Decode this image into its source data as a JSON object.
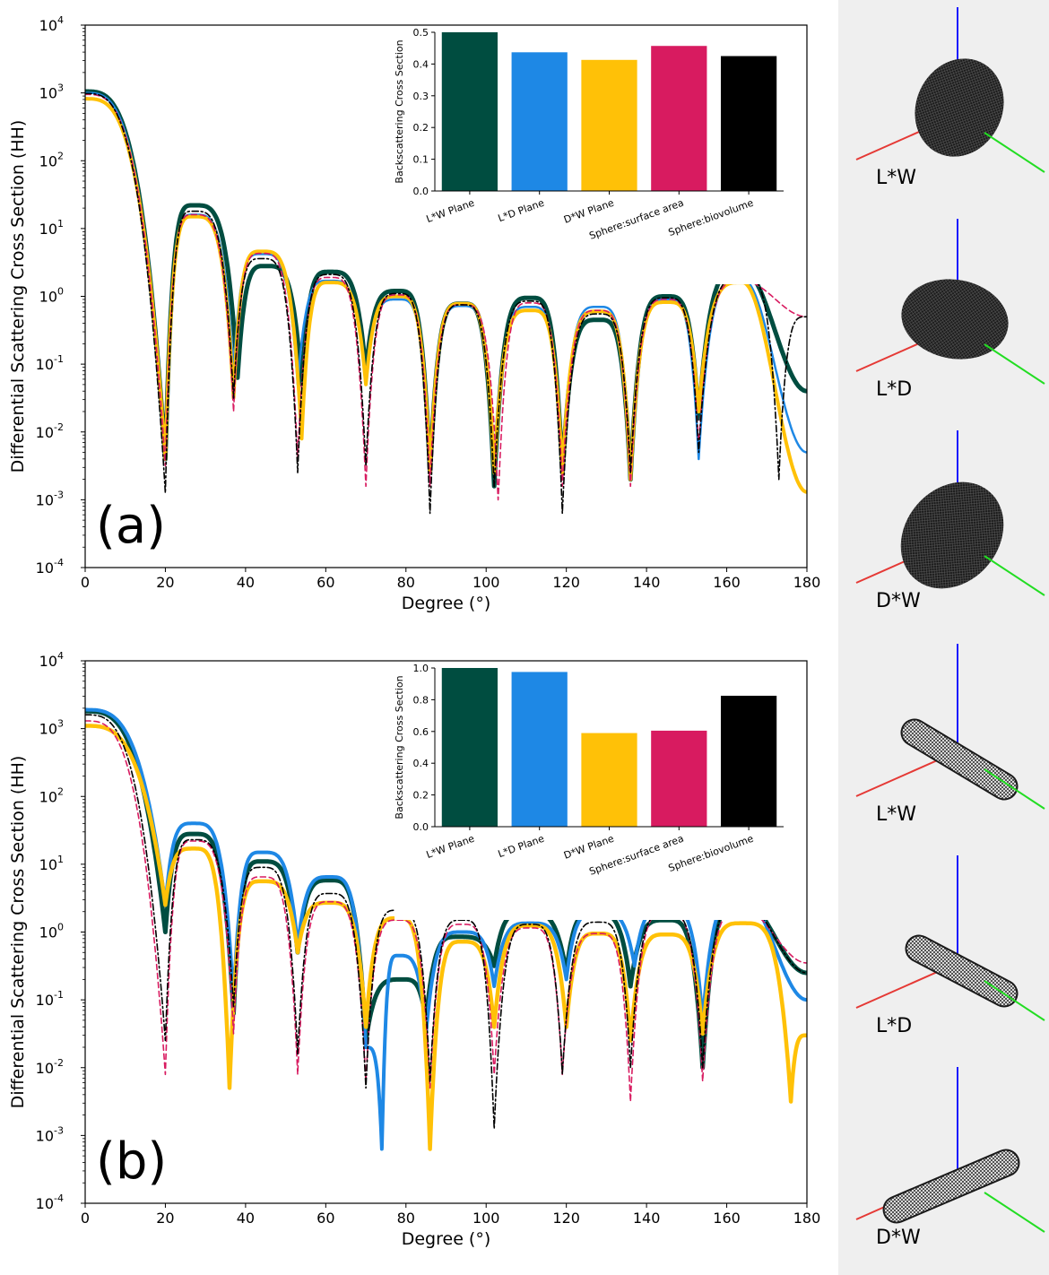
{
  "chart_data": [
    {
      "type": "line",
      "panel_label": "(a)",
      "xlabel": "Degree (°)",
      "ylabel": "Differential Scattering Cross Section (HH)",
      "xlim": [
        0,
        180
      ],
      "ylim_log10": [
        -4,
        4
      ],
      "x_ticks": [
        "0",
        "20",
        "40",
        "60",
        "80",
        "100",
        "120",
        "140",
        "160",
        "180"
      ],
      "y_ticks": [
        "10",
        "10",
        "10",
        "10",
        "10",
        "10",
        "10",
        "10",
        "10"
      ],
      "y_tick_exponents": [
        "4",
        "3",
        "2",
        "1",
        "0",
        "-1",
        "-2",
        "-3",
        "-4"
      ],
      "series": [
        {
          "name": "L*W Plane",
          "color": "#004d40",
          "dash": "solid",
          "width": 5,
          "start": 1050,
          "nulls": [
            [
              20,
              -2.4
            ],
            [
              38,
              -1.2
            ],
            [
              54,
              -1.3
            ],
            [
              70,
              -1.1
            ],
            [
              86,
              -2.6
            ],
            [
              102,
              -2.8
            ],
            [
              119,
              -2.6
            ],
            [
              136,
              -2.7
            ],
            [
              153,
              -1.8
            ]
          ],
          "peaks": [
            [
              27,
              22
            ],
            [
              45,
              2.8
            ],
            [
              61,
              2.3
            ],
            [
              78,
              1.2
            ],
            [
              94,
              0.78
            ],
            [
              111,
              0.95
            ],
            [
              128,
              0.45
            ],
            [
              145,
              1.0
            ],
            [
              164,
              2.5
            ]
          ],
          "end": [
            180,
            0.04
          ]
        },
        {
          "name": "L*D Plane",
          "color": "#1e88e5",
          "dash": "solid",
          "width": 2.5,
          "start": 1000,
          "nulls": [
            [
              20,
              -2.4
            ],
            [
              37,
              -1.1
            ],
            [
              53,
              -1.3
            ],
            [
              70,
              -1.3
            ],
            [
              86,
              -2.6
            ],
            [
              102,
              -2.6
            ],
            [
              119,
              -2.6
            ],
            [
              136,
              -2.6
            ],
            [
              153,
              -2.4
            ]
          ],
          "peaks": [
            [
              27,
              16
            ],
            [
              44,
              4.2
            ],
            [
              61,
              1.7
            ],
            [
              78,
              0.9
            ],
            [
              94,
              0.72
            ],
            [
              111,
              0.7
            ],
            [
              128,
              0.7
            ],
            [
              145,
              0.9
            ],
            [
              164,
              1.8
            ]
          ],
          "end": [
            180,
            0.005
          ]
        },
        {
          "name": "D*W Plane",
          "color": "#ffc107",
          "dash": "solid",
          "width": 4,
          "start": 820,
          "nulls": [
            [
              20,
              -2.4
            ],
            [
              37,
              -1.5
            ],
            [
              54,
              -2.1
            ],
            [
              70,
              -1.3
            ],
            [
              86,
              -2.6
            ],
            [
              102,
              -2.6
            ],
            [
              119,
              -2.6
            ],
            [
              136,
              -2.7
            ],
            [
              153,
              -1.7
            ]
          ],
          "peaks": [
            [
              27,
              15
            ],
            [
              44,
              4.6
            ],
            [
              61,
              1.6
            ],
            [
              78,
              1.0
            ],
            [
              94,
              0.78
            ],
            [
              111,
              0.62
            ],
            [
              128,
              0.6
            ],
            [
              145,
              0.82
            ],
            [
              164,
              1.6
            ]
          ],
          "end": [
            180,
            0.0013
          ]
        },
        {
          "name": "Sphere:surface area",
          "color": "#d81b60",
          "dash": "6,4",
          "width": 1.6,
          "start": 950,
          "nulls": [
            [
              20,
              -2.5
            ],
            [
              37,
              -1.7
            ],
            [
              53,
              -2.4
            ],
            [
              70,
              -2.8
            ],
            [
              86,
              -2.8
            ],
            [
              103,
              -3.0
            ],
            [
              119,
              -2.8
            ],
            [
              136,
              -2.8
            ],
            [
              153,
              -2.2
            ]
          ],
          "peaks": [
            [
              27,
              16
            ],
            [
              44,
              4.3
            ],
            [
              61,
              1.9
            ],
            [
              78,
              1.05
            ],
            [
              94,
              0.75
            ],
            [
              111,
              0.8
            ],
            [
              128,
              0.62
            ],
            [
              145,
              0.9
            ],
            [
              164,
              1.7
            ]
          ],
          "end": [
            180,
            0.5
          ]
        },
        {
          "name": "Sphere:biovolume",
          "color": "#000000",
          "dash": "7,3,2,3",
          "width": 1.6,
          "start": 980,
          "nulls": [
            [
              20,
              -2.9
            ],
            [
              37,
              -1.5
            ],
            [
              53,
              -2.6
            ],
            [
              70,
              -2.5
            ],
            [
              86,
              -3.2
            ],
            [
              102,
              -2.8
            ],
            [
              119,
              -3.2
            ],
            [
              136,
              -2.6
            ],
            [
              153,
              -2.3
            ],
            [
              173,
              -2.7
            ]
          ],
          "peaks": [
            [
              27,
              18
            ],
            [
              44,
              3.6
            ],
            [
              61,
              2.1
            ],
            [
              78,
              1.1
            ],
            [
              94,
              0.75
            ],
            [
              111,
              0.85
            ],
            [
              128,
              0.55
            ],
            [
              145,
              0.95
            ],
            [
              164,
              1.9
            ]
          ],
          "end": [
            180,
            0.5
          ]
        }
      ],
      "inset": {
        "type": "bar",
        "ylabel": "Backscattering Cross Section",
        "ylim": [
          0,
          0.5
        ],
        "y_ticks": [
          "0.0",
          "0.1",
          "0.2",
          "0.3",
          "0.4",
          "0.5"
        ],
        "categories": [
          "L*W Plane",
          "L*D Plane",
          "D*W Plane",
          "Sphere:surface area",
          "Sphere:biovolume"
        ],
        "values": [
          0.5,
          0.437,
          0.413,
          0.457,
          0.425
        ],
        "colors": [
          "#004d40",
          "#1e88e5",
          "#ffc107",
          "#d81b60",
          "#000000"
        ]
      }
    },
    {
      "type": "line",
      "panel_label": "(b)",
      "xlabel": "Degree (°)",
      "ylabel": "Differential Scattering Cross Section (HH)",
      "xlim": [
        0,
        180
      ],
      "ylim_log10": [
        -4,
        4
      ],
      "x_ticks": [
        "0",
        "20",
        "40",
        "60",
        "80",
        "100",
        "120",
        "140",
        "160",
        "180"
      ],
      "y_ticks": [
        "10",
        "10",
        "10",
        "10",
        "10",
        "10",
        "10",
        "10",
        "10"
      ],
      "y_tick_exponents": [
        "4",
        "3",
        "2",
        "1",
        "0",
        "-1",
        "-2",
        "-3",
        "-4"
      ],
      "series": [
        {
          "name": "L*W Plane",
          "color": "#004d40",
          "dash": "solid",
          "width": 5,
          "start": 1800,
          "nulls": [
            [
              20,
              0.0
            ],
            [
              37,
              -1.2
            ],
            [
              53,
              -0.3
            ],
            [
              70,
              -1.6
            ],
            [
              85,
              -1.3
            ],
            [
              102,
              -0.5
            ],
            [
              120,
              -0.6
            ],
            [
              136,
              -0.8
            ],
            [
              154,
              -2.0
            ]
          ],
          "peaks": [
            [
              27,
              28
            ],
            [
              44,
              11
            ],
            [
              61,
              5.8
            ],
            [
              79,
              0.2
            ],
            [
              93,
              0.85
            ],
            [
              110,
              1.95
            ],
            [
              127,
              1.9
            ],
            [
              145,
              1.5
            ],
            [
              164,
              2.9
            ]
          ],
          "end": [
            180,
            0.25
          ]
        },
        {
          "name": "L*D Plane",
          "color": "#1e88e5",
          "dash": "solid",
          "width": 4,
          "start": 1900,
          "nulls": [
            [
              20,
              0.4
            ],
            [
              37,
              -1.0
            ],
            [
              53,
              -0.2
            ],
            [
              70,
              -1.7
            ],
            [
              74,
              -3.2
            ],
            [
              85,
              -1.5
            ],
            [
              102,
              -0.8
            ],
            [
              120,
              -0.7
            ],
            [
              137,
              -0.5
            ],
            [
              154,
              -1.3
            ]
          ],
          "peaks": [
            [
              27,
              40
            ],
            [
              44,
              15
            ],
            [
              61,
              6.5
            ],
            [
              78,
              0.45
            ],
            [
              94,
              1.0
            ],
            [
              111,
              1.35
            ],
            [
              128,
              1.95
            ],
            [
              145,
              2.3
            ],
            [
              164,
              3.5
            ]
          ],
          "end": [
            180,
            0.1
          ]
        },
        {
          "name": "D*W Plane",
          "color": "#ffc107",
          "dash": "solid",
          "width": 4.5,
          "start": 1100,
          "nulls": [
            [
              20,
              0.4
            ],
            [
              36,
              -2.3
            ],
            [
              53,
              -0.3
            ],
            [
              70,
              -1.4
            ],
            [
              86,
              -3.2
            ],
            [
              102,
              -1.4
            ],
            [
              120,
              -1.4
            ],
            [
              136,
              -1.6
            ],
            [
              154,
              -1.5
            ],
            [
              176,
              -2.5
            ]
          ],
          "peaks": [
            [
              27,
              17
            ],
            [
              44,
              5.6
            ],
            [
              61,
              2.7
            ],
            [
              78,
              1.6
            ],
            [
              94,
              0.72
            ],
            [
              111,
              1.25
            ],
            [
              128,
              0.95
            ],
            [
              145,
              0.92
            ],
            [
              164,
              1.35
            ]
          ],
          "end": [
            180,
            0.03
          ]
        },
        {
          "name": "Sphere:surface area",
          "color": "#d81b60",
          "dash": "6,4",
          "width": 1.6,
          "start": 1300,
          "nulls": [
            [
              20,
              -2.1
            ],
            [
              37,
              -1.5
            ],
            [
              53,
              -2.1
            ],
            [
              70,
              -2.2
            ],
            [
              86,
              -2.3
            ],
            [
              102,
              -2.1
            ],
            [
              119,
              -2.1
            ],
            [
              136,
              -2.5
            ],
            [
              154,
              -2.2
            ]
          ],
          "peaks": [
            [
              27,
              22
            ],
            [
              44,
              6.5
            ],
            [
              61,
              2.8
            ],
            [
              78,
              1.5
            ],
            [
              94,
              1.3
            ],
            [
              111,
              1.15
            ],
            [
              128,
              0.95
            ],
            [
              145,
              1.9
            ],
            [
              164,
              2.2
            ]
          ],
          "end": [
            180,
            0.35
          ]
        },
        {
          "name": "Sphere:biovolume",
          "color": "#000000",
          "dash": "7,3,2,3",
          "width": 1.6,
          "start": 1600,
          "nulls": [
            [
              20,
              -1.6
            ],
            [
              37,
              -1.1
            ],
            [
              53,
              -1.8
            ],
            [
              70,
              -2.3
            ],
            [
              86,
              -2.2
            ],
            [
              102,
              -2.9
            ],
            [
              119,
              -2.1
            ],
            [
              136,
              -2.0
            ],
            [
              154,
              -2.0
            ]
          ],
          "peaks": [
            [
              27,
              23
            ],
            [
              44,
              9
            ],
            [
              61,
              3.7
            ],
            [
              78,
              2.1
            ],
            [
              94,
              1.5
            ],
            [
              111,
              1.3
            ],
            [
              128,
              1.4
            ],
            [
              145,
              1.9
            ],
            [
              164,
              2.8
            ]
          ],
          "end": [
            180,
            0.25
          ]
        }
      ],
      "inset": {
        "type": "bar",
        "ylabel": "Backscattering Cross Section",
        "ylim": [
          0,
          1.0
        ],
        "y_ticks": [
          "0.0",
          "0.2",
          "0.4",
          "0.6",
          "0.8",
          "1.0"
        ],
        "categories": [
          "L*W Plane",
          "L*D Plane",
          "D*W Plane",
          "Sphere:surface area",
          "Sphere:biovolume"
        ],
        "values": [
          1.0,
          0.975,
          0.59,
          0.605,
          0.825
        ],
        "colors": [
          "#004d40",
          "#1e88e5",
          "#ffc107",
          "#d81b60",
          "#000000"
        ]
      }
    }
  ],
  "shape_panels": [
    {
      "label": "L*W",
      "shape": "ovoid"
    },
    {
      "label": "L*D",
      "shape": "ovoid"
    },
    {
      "label": "D*W",
      "shape": "ovoid"
    },
    {
      "label": "L*W",
      "shape": "rod"
    },
    {
      "label": "L*D",
      "shape": "rod"
    },
    {
      "label": "D*W",
      "shape": "rod"
    }
  ],
  "axis_colors": {
    "x": "#e53935",
    "y": "#22dd22",
    "z": "#1a1aff"
  }
}
